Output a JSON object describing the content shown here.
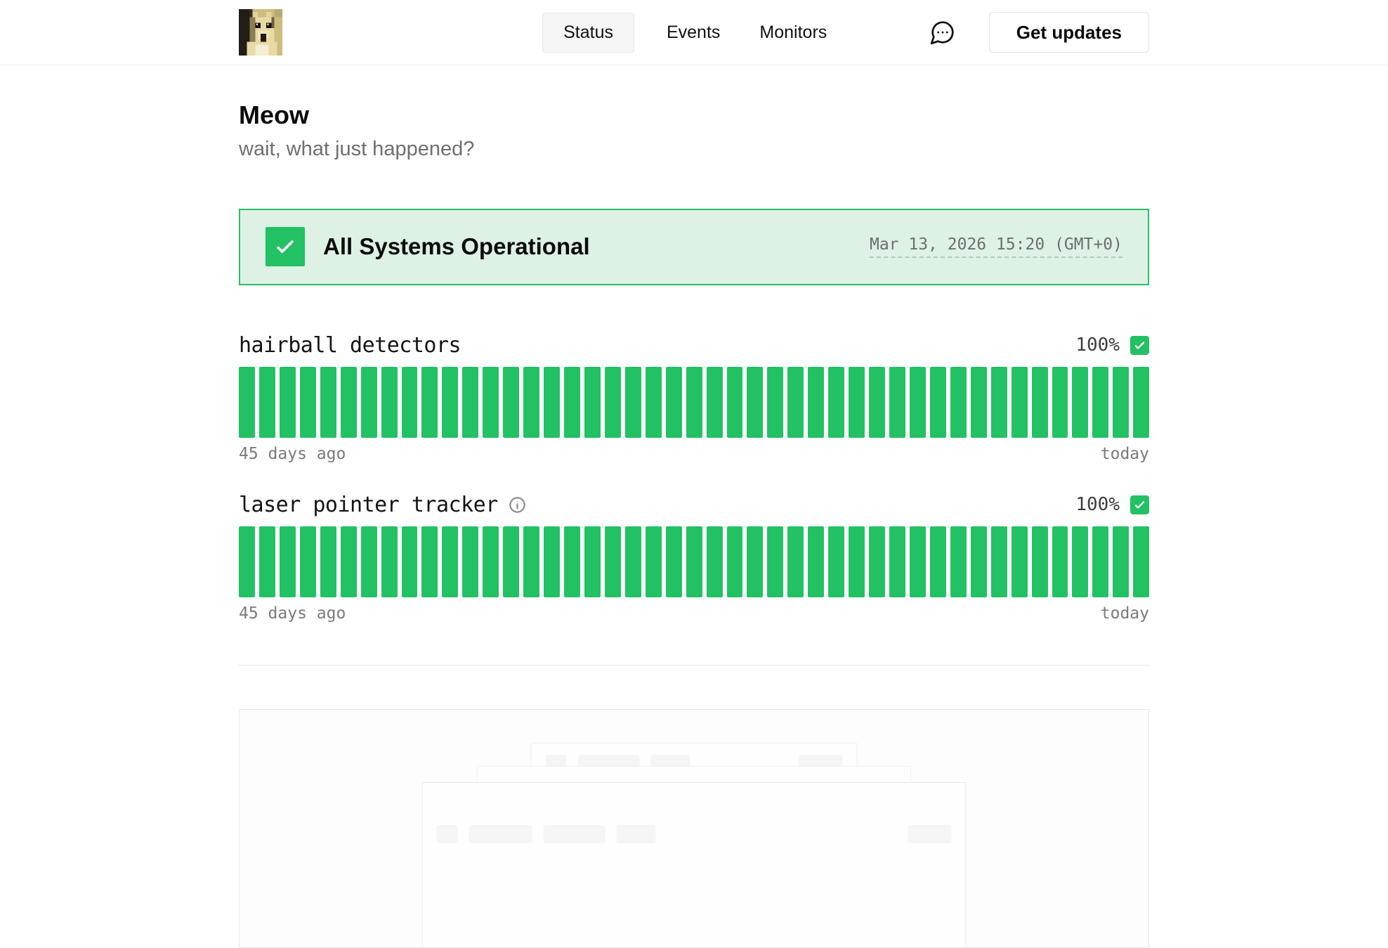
{
  "header": {
    "logo": "pixel-cat-logo",
    "nav": [
      {
        "label": "Status",
        "active": true
      },
      {
        "label": "Events",
        "active": false
      },
      {
        "label": "Monitors",
        "active": false
      }
    ],
    "chat_icon": "speech-bubble-icon",
    "get_updates_label": "Get updates"
  },
  "page": {
    "title": "Meow",
    "subtitle": "wait, what just happened?"
  },
  "status_banner": {
    "label": "All Systems Operational",
    "timestamp": "Mar 13, 2026 15:20 (GMT+0)"
  },
  "monitors": [
    {
      "name": "hairball detectors",
      "uptime": "100%",
      "has_info_icon": false,
      "bar_count": 45,
      "bar_status": "operational",
      "range_start": "45 days ago",
      "range_end": "today"
    },
    {
      "name": "laser pointer tracker",
      "uptime": "100%",
      "has_info_icon": true,
      "bar_count": 45,
      "bar_status": "operational",
      "range_start": "45 days ago",
      "range_end": "today"
    }
  ],
  "colors": {
    "operational_green": "#22c163",
    "banner_bg": "#ddf2e4",
    "banner_border": "#2abf68",
    "muted_text": "#7a7a7a"
  }
}
